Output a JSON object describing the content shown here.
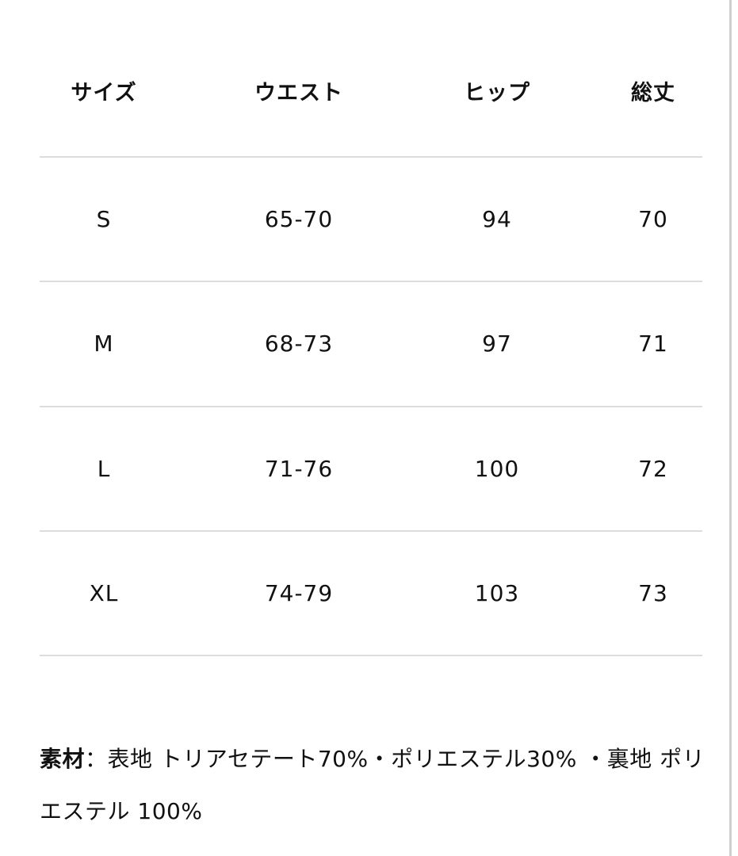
{
  "table": {
    "header": [
      "サイズ",
      "ウエスト",
      "ヒップ",
      "総丈"
    ],
    "rows": [
      [
        "S",
        "65-70",
        "94",
        "70"
      ],
      [
        "M",
        "68-73",
        "97",
        "71"
      ],
      [
        "L",
        "71-76",
        "100",
        "72"
      ],
      [
        "XL",
        "74-79",
        "103",
        "73"
      ]
    ]
  },
  "material": {
    "label": "素材",
    "text": "：表地 トリアセテート70%・ポリエステル30% ・裏地 ポリエステル 100%"
  }
}
